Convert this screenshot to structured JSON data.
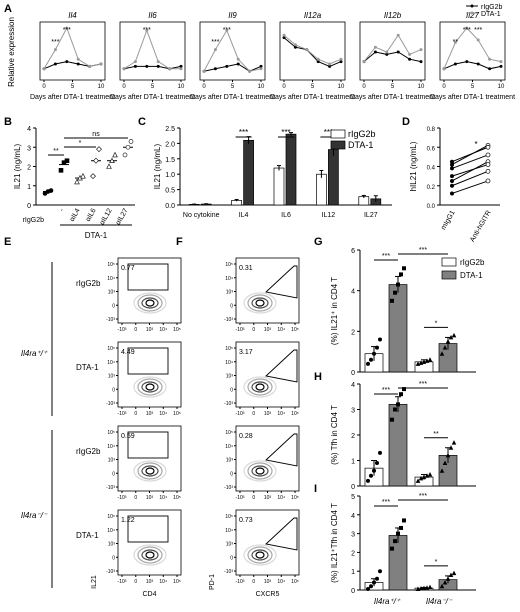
{
  "panel_letters": [
    "A",
    "B",
    "C",
    "D",
    "E",
    "F",
    "G",
    "H",
    "I"
  ],
  "colors": {
    "rigg": "#ffffff",
    "dta": "#808080",
    "dta_dark": "#333333",
    "line_light": "#9a9a9a",
    "line_dark": "#000000"
  },
  "chart_data": [
    {
      "panel": "A",
      "type": "line",
      "legend": [
        "rIgG2b",
        "DTA-1"
      ],
      "ylabel": "Relative expression",
      "xlabel": "Days after DTA-1 treatment",
      "x": [
        0,
        2,
        4,
        6,
        8,
        10
      ],
      "xticks": [
        "0",
        "5",
        "10"
      ],
      "subplots": [
        {
          "title": "Il4",
          "sig": [
            "***",
            "***"
          ],
          "rigg": [
            0.15,
            0.25,
            0.3,
            0.25,
            0.2,
            0.25
          ],
          "dta": [
            0.15,
            0.55,
            1.0,
            0.35,
            0.2,
            0.25
          ]
        },
        {
          "title": "Il6",
          "sig": [
            "***"
          ],
          "rigg": [
            0.15,
            0.2,
            0.2,
            0.2,
            0.15,
            0.2
          ],
          "dta": [
            0.15,
            0.3,
            0.95,
            0.3,
            0.15,
            0.15
          ]
        },
        {
          "title": "Il9",
          "sig": [
            "***",
            "***"
          ],
          "rigg": [
            0.1,
            0.15,
            0.2,
            0.25,
            0.1,
            0.2
          ],
          "dta": [
            0.1,
            0.55,
            0.95,
            0.35,
            0.1,
            0.15
          ]
        },
        {
          "title": "Il12a",
          "sig": [],
          "rigg": [
            0.8,
            0.6,
            0.55,
            0.3,
            0.2,
            0.3
          ],
          "dta": [
            0.85,
            0.65,
            0.55,
            0.35,
            0.25,
            0.35
          ]
        },
        {
          "title": "Il12b",
          "sig": [],
          "rigg": [
            0.3,
            0.5,
            0.45,
            0.5,
            0.35,
            0.3
          ],
          "dta": [
            0.3,
            0.6,
            0.5,
            0.85,
            0.45,
            0.55
          ]
        },
        {
          "title": "Il27",
          "sig": [
            "**",
            "***",
            "***"
          ],
          "rigg": [
            0.15,
            0.25,
            0.3,
            0.25,
            0.15,
            0.2
          ],
          "dta": [
            0.15,
            0.7,
            1.0,
            0.75,
            0.35,
            0.3
          ]
        }
      ]
    },
    {
      "panel": "B",
      "type": "scatter",
      "ylabel": "IL21 (ng/mL)",
      "ylim": [
        0,
        4
      ],
      "yticks": [
        "0",
        "1",
        "2",
        "3",
        "4"
      ],
      "categories": [
        "rIgG2b",
        "-",
        "αIL4",
        "αIL6",
        "αIL12",
        "αIL27"
      ],
      "group_label": "DTA-1",
      "means": [
        0.7,
        2.1,
        1.4,
        2.3,
        2.3,
        3.0
      ],
      "points": [
        [
          0.6,
          0.7,
          0.75
        ],
        [
          1.8,
          2.2,
          2.3
        ],
        [
          1.2,
          1.4,
          1.5
        ],
        [
          1.5,
          2.3,
          2.9
        ],
        [
          2.0,
          2.3,
          2.6
        ],
        [
          2.6,
          3.0,
          3.3
        ]
      ],
      "sig": [
        {
          "text": "**"
        },
        {
          "text": "*"
        },
        {
          "text": "ns"
        }
      ]
    },
    {
      "panel": "C",
      "type": "bar",
      "ylabel": "IL21 (ng/mL)",
      "ylim": [
        0,
        2.5
      ],
      "yticks": [
        "0.0",
        "0.5",
        "1.0",
        "1.5",
        "2.0",
        "2.5"
      ],
      "categories": [
        "No cytokine",
        "IL4",
        "IL6",
        "IL12",
        "IL27"
      ],
      "series": [
        {
          "name": "rIgG2b",
          "values": [
            0.02,
            0.15,
            1.2,
            1.0,
            0.27
          ],
          "err": [
            0.01,
            0.03,
            0.08,
            0.12,
            0.04
          ]
        },
        {
          "name": "DTA-1",
          "values": [
            0.03,
            2.1,
            2.3,
            1.8,
            0.2
          ],
          "err": [
            0.01,
            0.12,
            0.05,
            0.2,
            0.1
          ]
        }
      ],
      "sig": [
        "***",
        "***",
        "***"
      ]
    },
    {
      "panel": "D",
      "type": "scatter",
      "ylabel": "hIL21 (ng/mL)",
      "ylim": [
        0,
        0.8
      ],
      "yticks": [
        "0.0",
        "0.2",
        "0.4",
        "0.6",
        "0.8"
      ],
      "categories": [
        "mIgG1",
        "Anti-hGITR"
      ],
      "pairs": [
        [
          0.12,
          0.25
        ],
        [
          0.2,
          0.35
        ],
        [
          0.25,
          0.45
        ],
        [
          0.3,
          0.42
        ],
        [
          0.38,
          0.52
        ],
        [
          0.42,
          0.62
        ],
        [
          0.45,
          0.6
        ]
      ],
      "sig": "*"
    },
    {
      "panel": "G",
      "type": "bar",
      "ylabel": "(%) IL21⁺ in CD4 T",
      "ylim": [
        0,
        6
      ],
      "yticks": [
        "0",
        "2",
        "4",
        "6"
      ],
      "legend": [
        "rIgG2b",
        "DTA-1"
      ],
      "groups": [
        "Il4ra⁺/⁺",
        "Il4ra⁻/⁻"
      ],
      "values": [
        0.9,
        4.3,
        0.5,
        1.4
      ],
      "err": [
        0.35,
        0.4,
        0.1,
        0.3
      ],
      "points": [
        [
          0.4,
          0.6,
          0.9,
          1.2,
          1.6
        ],
        [
          3.5,
          3.9,
          4.3,
          4.8,
          5.1
        ],
        [
          0.4,
          0.45,
          0.5,
          0.55,
          0.6
        ],
        [
          0.9,
          1.2,
          1.5,
          1.7,
          1.8
        ]
      ],
      "sig": [
        "***",
        "***",
        "*"
      ]
    },
    {
      "panel": "H",
      "type": "bar",
      "ylabel": "(%) Tfh in CD4 T",
      "ylim": [
        0,
        4
      ],
      "yticks": [
        "0",
        "1",
        "2",
        "3",
        "4"
      ],
      "values": [
        0.7,
        3.2,
        0.35,
        1.2
      ],
      "err": [
        0.3,
        0.3,
        0.1,
        0.3
      ],
      "points": [
        [
          0.2,
          0.4,
          0.6,
          0.9,
          1.3
        ],
        [
          2.6,
          3.0,
          3.2,
          3.6,
          3.8
        ],
        [
          0.2,
          0.3,
          0.35,
          0.4,
          0.45
        ],
        [
          0.6,
          0.9,
          1.2,
          1.5,
          1.7
        ]
      ],
      "sig": [
        "***",
        "***",
        "**"
      ]
    },
    {
      "panel": "I",
      "type": "bar",
      "ylabel": "(%) IL21⁺Tfh in CD4 T",
      "ylim": [
        0,
        5
      ],
      "yticks": [
        "0",
        "1",
        "2",
        "3",
        "4",
        "5"
      ],
      "values": [
        0.4,
        2.9,
        0.1,
        0.55
      ],
      "err": [
        0.2,
        0.4,
        0.03,
        0.2
      ],
      "points": [
        [
          0.05,
          0.2,
          0.4,
          0.6,
          1.0
        ],
        [
          2.2,
          2.6,
          3.0,
          3.3,
          3.7
        ],
        [
          0.05,
          0.08,
          0.1,
          0.12,
          0.15
        ],
        [
          0.2,
          0.4,
          0.6,
          0.8,
          0.9
        ]
      ],
      "sig": [
        "***",
        "***",
        "*"
      ]
    },
    {
      "panel": "E",
      "type": "flow",
      "xlabel": "CD4",
      "ylabel": "IL21",
      "row_labels": [
        "rIgG2b",
        "DTA-1",
        "rIgG2b",
        "DTA-1"
      ],
      "group_labels": [
        "Il4ra⁺/⁺",
        "Il4ra⁻/⁻"
      ],
      "values": [
        "0.77",
        "4.49",
        "0.59",
        "1.22"
      ],
      "yticks": [
        "10⁵",
        "10⁴",
        "10³",
        "0",
        "-10³"
      ],
      "xticks": [
        "-10³",
        "0",
        "10³",
        "10⁴",
        "10⁵"
      ]
    },
    {
      "panel": "F",
      "type": "flow",
      "xlabel": "CXCR5",
      "ylabel": "PD-1",
      "values": [
        "0.31",
        "3.17",
        "0.28",
        "0.73"
      ],
      "yticks": [
        "10⁵",
        "10⁴",
        "10³",
        "0",
        "-10³"
      ],
      "xticks": [
        "-10³",
        "0",
        "10³",
        "10⁴",
        "10⁵"
      ]
    }
  ]
}
